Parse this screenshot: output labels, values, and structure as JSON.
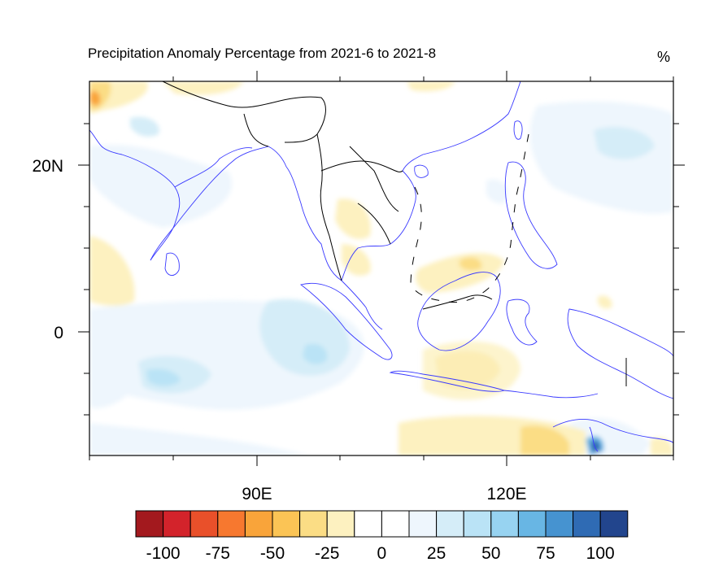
{
  "title": "Precipitation Anomaly Percentage from 2021-6 to 2021-8",
  "units": "%",
  "axes": {
    "lat_labels": [
      "20N",
      "0"
    ],
    "lon_labels": [
      "90E",
      "120E"
    ]
  },
  "colorbar": {
    "labels": [
      "-100",
      "-75",
      "-50",
      "-25",
      "0",
      "25",
      "50",
      "75",
      "100"
    ],
    "colors": [
      "#a3191e",
      "#d3232b",
      "#e9502a",
      "#f7782f",
      "#f9a43a",
      "#fbc455",
      "#fbdd85",
      "#fdf1c0",
      "#ffffff",
      "#ffffff",
      "#eef6fd",
      "#d5edf8",
      "#bae3f6",
      "#97d3f1",
      "#68b6e4",
      "#4693d0",
      "#2f6bb4",
      "#22458d"
    ]
  }
}
